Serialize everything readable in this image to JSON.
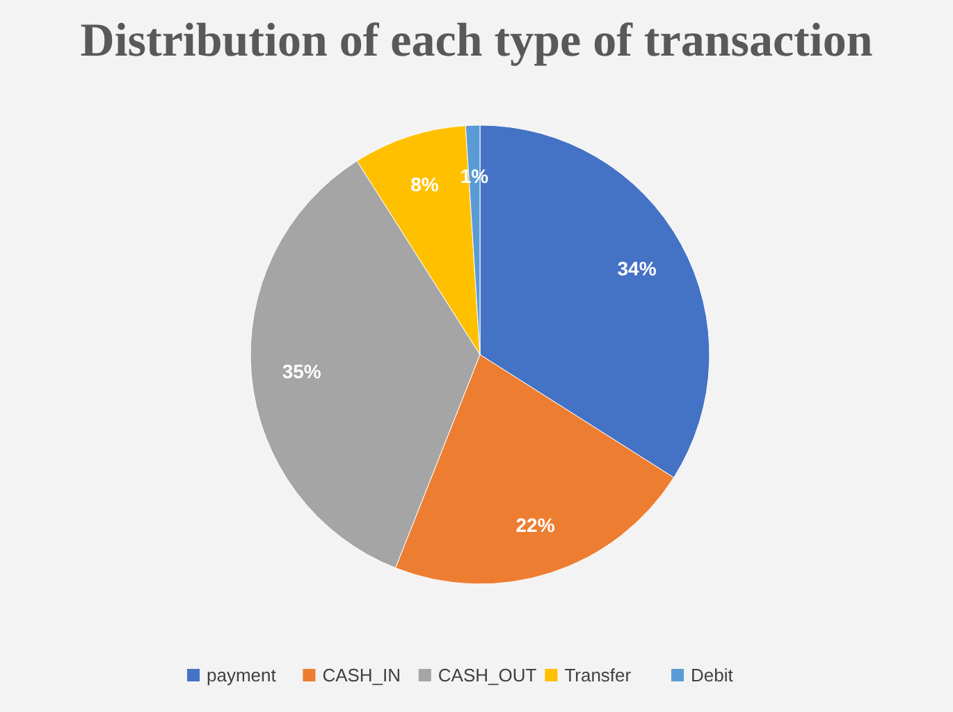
{
  "chart_data": {
    "type": "pie",
    "title": "Distribution of each type of transaction",
    "categories": [
      "payment",
      "CASH_IN",
      "CASH_OUT",
      "Transfer",
      "Debit"
    ],
    "values": [
      34,
      22,
      35,
      8,
      1
    ],
    "colors": [
      "#4472c4",
      "#ed7d31",
      "#a5a5a5",
      "#ffc000",
      "#5b9bd5"
    ],
    "value_labels": [
      "34%",
      "22%",
      "35%",
      "8%",
      "1%"
    ],
    "legend": "bottom"
  }
}
